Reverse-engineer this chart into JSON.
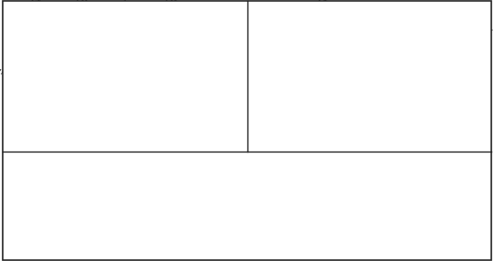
{
  "bg_color": "#ffffff",
  "line_color": "#222222",
  "dot_color": "#555555",
  "lw": 0.8,
  "fs": 6.5,
  "fs_title": 7.5
}
